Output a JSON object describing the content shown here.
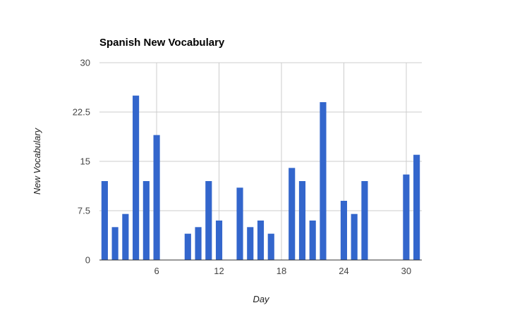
{
  "chart_data": {
    "type": "bar",
    "title": "Spanish New Vocabulary",
    "xlabel": "Day",
    "ylabel": "New Vocabulary",
    "xlim": [
      0.5,
      31.5
    ],
    "ylim": [
      0,
      30
    ],
    "x_ticks": [
      6,
      12,
      18,
      24,
      30
    ],
    "y_ticks": [
      0,
      7.5,
      15,
      22.5,
      30
    ],
    "vertical_grid": true,
    "horizontal_grid": true,
    "legend": "none",
    "bar_color": "#3366cc",
    "series": [
      {
        "x": [
          1,
          2,
          3,
          4,
          5,
          6,
          9,
          10,
          11,
          12,
          14,
          15,
          16,
          17,
          19,
          20,
          21,
          22,
          24,
          25,
          26,
          30,
          31
        ],
        "values": [
          12,
          5,
          7,
          25,
          12,
          19,
          4,
          5,
          12,
          6,
          11,
          5,
          6,
          4,
          14,
          12,
          6,
          24,
          9,
          7,
          12,
          13,
          16
        ]
      }
    ]
  }
}
